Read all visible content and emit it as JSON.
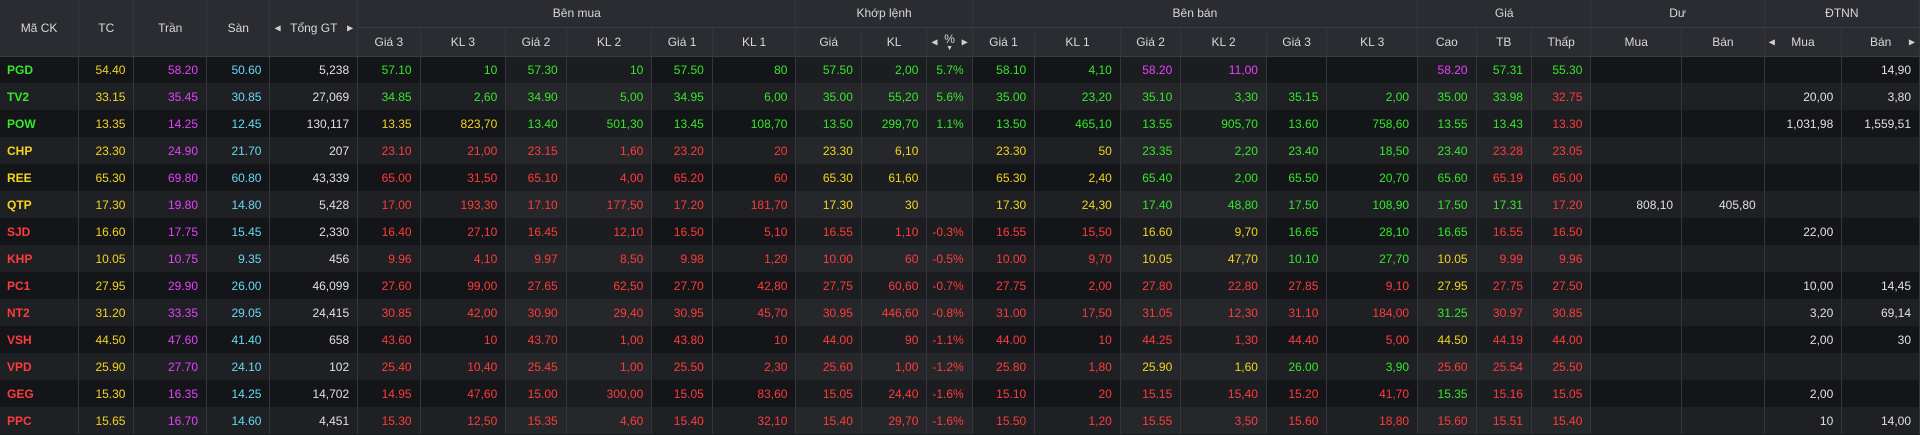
{
  "colors": {
    "up": "#35e82a",
    "down": "#ff3b3b",
    "ref": "#f2d51f",
    "ceiling": "#e740ff",
    "floor": "#66d9f5",
    "header_bg": "#2a2c31"
  },
  "headers": {
    "symbol": "Mã CK",
    "ref": "TC",
    "ceil": "Trần",
    "floor": "Sàn",
    "total": "Tổng GT",
    "buy": "Bên mua",
    "match": "Khớp lệnh",
    "sell": "Bên bán",
    "price": "Giá",
    "remain": "Dư",
    "foreign": "ĐTNN",
    "sub": {
      "bp3": "Giá 3",
      "bv3": "KL 3",
      "bp2": "Giá 2",
      "bv2": "KL 2",
      "bp1": "Giá 1",
      "bv1": "KL 1",
      "mp": "Giá",
      "mv": "KL",
      "mpct": "%",
      "sp1": "Giá 1",
      "sv1": "KL 1",
      "sp2": "Giá 2",
      "sv2": "KL 2",
      "sp3": "Giá 3",
      "sv3": "KL 3",
      "high": "Cao",
      "avg": "TB",
      "low": "Thấp",
      "rbuy": "Mua",
      "rsell": "Bán",
      "fbuy": "Mua",
      "fsell": "Bán"
    }
  },
  "rows": [
    {
      "s": "PGD",
      "tc": "54.40",
      "tr": "58.20",
      "sa": "50.60",
      "gt": "5,238",
      "bp3": "57.10",
      "bv3": "10",
      "bp2": "57.30",
      "bv2": "10",
      "bp1": "57.50",
      "bv1": "80",
      "mp": "57.50",
      "mv": "2,00",
      "pct": "5.7%",
      "sp1": "58.10",
      "sv1": "4,10",
      "sp2": "58.20",
      "sv2": "11,00",
      "sp3": "",
      "sv3": "",
      "hi": "58.20",
      "avg": "57.31",
      "lo": "55.30",
      "rb": "",
      "rs": "",
      "fb": "",
      "fs": "14,90"
    },
    {
      "s": "TV2",
      "tc": "33.15",
      "tr": "35.45",
      "sa": "30.85",
      "gt": "27,069",
      "bp3": "34.85",
      "bv3": "2,60",
      "bp2": "34.90",
      "bv2": "5,00",
      "bp1": "34.95",
      "bv1": "6,00",
      "mp": "35.00",
      "mv": "55,20",
      "pct": "5.6%",
      "sp1": "35.00",
      "sv1": "23,20",
      "sp2": "35.10",
      "sv2": "3,30",
      "sp3": "35.15",
      "sv3": "2,00",
      "hi": "35.00",
      "avg": "33.98",
      "lo": "32.75",
      "rb": "",
      "rs": "",
      "fb": "20,00",
      "fs": "3,80"
    },
    {
      "s": "POW",
      "tc": "13.35",
      "tr": "14.25",
      "sa": "12.45",
      "gt": "130,117",
      "bp3": "13.35",
      "bv3": "823,70",
      "bp2": "13.40",
      "bv2": "501,30",
      "bp1": "13.45",
      "bv1": "108,70",
      "mp": "13.50",
      "mv": "299,70",
      "pct": "1.1%",
      "sp1": "13.50",
      "sv1": "465,10",
      "sp2": "13.55",
      "sv2": "905,70",
      "sp3": "13.60",
      "sv3": "758,60",
      "hi": "13.55",
      "avg": "13.43",
      "lo": "13.30",
      "rb": "",
      "rs": "",
      "fb": "1,031,98",
      "fs": "1,559,51"
    },
    {
      "s": "CHP",
      "tc": "23.30",
      "tr": "24.90",
      "sa": "21.70",
      "gt": "207",
      "bp3": "23.10",
      "bv3": "21,00",
      "bp2": "23.15",
      "bv2": "1,60",
      "bp1": "23.20",
      "bv1": "20",
      "mp": "23.30",
      "mv": "6,10",
      "pct": "",
      "sp1": "23.30",
      "sv1": "50",
      "sp2": "23.35",
      "sv2": "2,20",
      "sp3": "23.40",
      "sv3": "18,50",
      "hi": "23.40",
      "avg": "23.28",
      "lo": "23.05",
      "rb": "",
      "rs": "",
      "fb": "",
      "fs": ""
    },
    {
      "s": "REE",
      "tc": "65.30",
      "tr": "69.80",
      "sa": "60.80",
      "gt": "43,339",
      "bp3": "65.00",
      "bv3": "31,50",
      "bp2": "65.10",
      "bv2": "4,00",
      "bp1": "65.20",
      "bv1": "60",
      "mp": "65.30",
      "mv": "61,60",
      "pct": "",
      "sp1": "65.30",
      "sv1": "2,40",
      "sp2": "65.40",
      "sv2": "2,00",
      "sp3": "65.50",
      "sv3": "20,70",
      "hi": "65.60",
      "avg": "65.19",
      "lo": "65.00",
      "rb": "",
      "rs": "",
      "fb": "",
      "fs": ""
    },
    {
      "s": "QTP",
      "tc": "17.30",
      "tr": "19.80",
      "sa": "14.80",
      "gt": "5,428",
      "bp3": "17.00",
      "bv3": "193,30",
      "bp2": "17.10",
      "bv2": "177,50",
      "bp1": "17.20",
      "bv1": "181,70",
      "mp": "17.30",
      "mv": "30",
      "pct": "",
      "sp1": "17.30",
      "sv1": "24,30",
      "sp2": "17.40",
      "sv2": "48,80",
      "sp3": "17.50",
      "sv3": "108,90",
      "hi": "17.50",
      "avg": "17.31",
      "lo": "17.20",
      "rb": "808,10",
      "rs": "405,80",
      "fb": "",
      "fs": ""
    },
    {
      "s": "SJD",
      "tc": "16.60",
      "tr": "17.75",
      "sa": "15.45",
      "gt": "2,330",
      "bp3": "16.40",
      "bv3": "27,10",
      "bp2": "16.45",
      "bv2": "12,10",
      "bp1": "16.50",
      "bv1": "5,10",
      "mp": "16.55",
      "mv": "1,10",
      "pct": "-0.3%",
      "sp1": "16.55",
      "sv1": "15,50",
      "sp2": "16.60",
      "sv2": "9,70",
      "sp3": "16.65",
      "sv3": "28,10",
      "hi": "16.65",
      "avg": "16.55",
      "lo": "16.50",
      "rb": "",
      "rs": "",
      "fb": "22,00",
      "fs": ""
    },
    {
      "s": "KHP",
      "tc": "10.05",
      "tr": "10.75",
      "sa": "9.35",
      "gt": "456",
      "bp3": "9.96",
      "bv3": "4,10",
      "bp2": "9.97",
      "bv2": "8,50",
      "bp1": "9.98",
      "bv1": "1,20",
      "mp": "10.00",
      "mv": "60",
      "pct": "-0.5%",
      "sp1": "10.00",
      "sv1": "9,70",
      "sp2": "10.05",
      "sv2": "47,70",
      "sp3": "10.10",
      "sv3": "27,70",
      "hi": "10.05",
      "avg": "9.99",
      "lo": "9.96",
      "rb": "",
      "rs": "",
      "fb": "",
      "fs": ""
    },
    {
      "s": "PC1",
      "tc": "27.95",
      "tr": "29.90",
      "sa": "26.00",
      "gt": "46,099",
      "bp3": "27.60",
      "bv3": "99,00",
      "bp2": "27.65",
      "bv2": "62,50",
      "bp1": "27.70",
      "bv1": "42,80",
      "mp": "27.75",
      "mv": "60,60",
      "pct": "-0.7%",
      "sp1": "27.75",
      "sv1": "2,00",
      "sp2": "27.80",
      "sv2": "22,80",
      "sp3": "27.85",
      "sv3": "9,10",
      "hi": "27.95",
      "avg": "27.75",
      "lo": "27.50",
      "rb": "",
      "rs": "",
      "fb": "10,00",
      "fs": "14,45"
    },
    {
      "s": "NT2",
      "tc": "31.20",
      "tr": "33.35",
      "sa": "29.05",
      "gt": "24,415",
      "bp3": "30.85",
      "bv3": "42,00",
      "bp2": "30.90",
      "bv2": "29,40",
      "bp1": "30.95",
      "bv1": "45,70",
      "mp": "30.95",
      "mv": "446,60",
      "pct": "-0.8%",
      "sp1": "31.00",
      "sv1": "17,50",
      "sp2": "31.05",
      "sv2": "12,30",
      "sp3": "31.10",
      "sv3": "184,00",
      "hi": "31.25",
      "avg": "30.97",
      "lo": "30.85",
      "rb": "",
      "rs": "",
      "fb": "3,20",
      "fs": "69,14"
    },
    {
      "s": "VSH",
      "tc": "44.50",
      "tr": "47.60",
      "sa": "41.40",
      "gt": "658",
      "bp3": "43.60",
      "bv3": "10",
      "bp2": "43.70",
      "bv2": "1,00",
      "bp1": "43.80",
      "bv1": "10",
      "mp": "44.00",
      "mv": "90",
      "pct": "-1.1%",
      "sp1": "44.00",
      "sv1": "10",
      "sp2": "44.25",
      "sv2": "1,30",
      "sp3": "44.40",
      "sv3": "5,00",
      "hi": "44.50",
      "avg": "44.19",
      "lo": "44.00",
      "rb": "",
      "rs": "",
      "fb": "2,00",
      "fs": "30"
    },
    {
      "s": "VPD",
      "tc": "25.90",
      "tr": "27.70",
      "sa": "24.10",
      "gt": "102",
      "bp3": "25.40",
      "bv3": "10,40",
      "bp2": "25.45",
      "bv2": "1,00",
      "bp1": "25.50",
      "bv1": "2,30",
      "mp": "25.60",
      "mv": "1,00",
      "pct": "-1.2%",
      "sp1": "25.80",
      "sv1": "1,80",
      "sp2": "25.90",
      "sv2": "1,60",
      "sp3": "26.00",
      "sv3": "3,90",
      "hi": "25.60",
      "avg": "25.54",
      "lo": "25.50",
      "rb": "",
      "rs": "",
      "fb": "",
      "fs": ""
    },
    {
      "s": "GEG",
      "tc": "15.30",
      "tr": "16.35",
      "sa": "14.25",
      "gt": "14,702",
      "bp3": "14.95",
      "bv3": "47,60",
      "bp2": "15.00",
      "bv2": "300,00",
      "bp1": "15.05",
      "bv1": "83,60",
      "mp": "15.05",
      "mv": "24,40",
      "pct": "-1.6%",
      "sp1": "15.10",
      "sv1": "20",
      "sp2": "15.15",
      "sv2": "15,40",
      "sp3": "15.20",
      "sv3": "41,70",
      "hi": "15.35",
      "avg": "15.16",
      "lo": "15.05",
      "rb": "",
      "rs": "",
      "fb": "2,00",
      "fs": ""
    },
    {
      "s": "PPC",
      "tc": "15.65",
      "tr": "16.70",
      "sa": "14.60",
      "gt": "4,451",
      "bp3": "15.30",
      "bv3": "12,50",
      "bp2": "15.35",
      "bv2": "4,60",
      "bp1": "15.40",
      "bv1": "32,10",
      "mp": "15.40",
      "mv": "29,70",
      "pct": "-1.6%",
      "sp1": "15.50",
      "sv1": "1,20",
      "sp2": "15.55",
      "sv2": "3,50",
      "sp3": "15.60",
      "sv3": "18,80",
      "hi": "15.60",
      "avg": "15.51",
      "lo": "15.40",
      "rb": "",
      "rs": "",
      "fb": "10",
      "fs": "14,00"
    }
  ]
}
